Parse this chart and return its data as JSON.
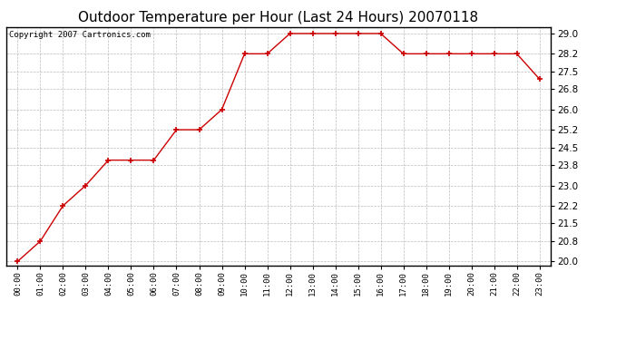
{
  "title": "Outdoor Temperature per Hour (Last 24 Hours) 20070118",
  "copyright_text": "Copyright 2007 Cartronics.com",
  "hours": [
    "00:00",
    "01:00",
    "02:00",
    "03:00",
    "04:00",
    "05:00",
    "06:00",
    "07:00",
    "08:00",
    "09:00",
    "10:00",
    "11:00",
    "12:00",
    "13:00",
    "14:00",
    "15:00",
    "16:00",
    "17:00",
    "18:00",
    "19:00",
    "20:00",
    "21:00",
    "22:00",
    "23:00"
  ],
  "temperatures": [
    20.0,
    20.8,
    22.2,
    23.0,
    24.0,
    24.0,
    24.0,
    25.2,
    25.2,
    26.0,
    28.2,
    28.2,
    29.0,
    29.0,
    29.0,
    29.0,
    29.0,
    28.2,
    28.2,
    28.2,
    28.2,
    28.2,
    28.2,
    27.2
  ],
  "line_color": "#cc0000",
  "marker": "+",
  "marker_color": "#cc0000",
  "marker_size": 5,
  "bg_color": "#ffffff",
  "grid_color": "#bbbbbb",
  "ylim": [
    19.85,
    29.25
  ],
  "yticks": [
    20.0,
    20.8,
    21.5,
    22.2,
    23.0,
    23.8,
    24.5,
    25.2,
    26.0,
    26.8,
    27.5,
    28.2,
    29.0
  ],
  "title_fontsize": 11,
  "copyright_fontsize": 6.5
}
